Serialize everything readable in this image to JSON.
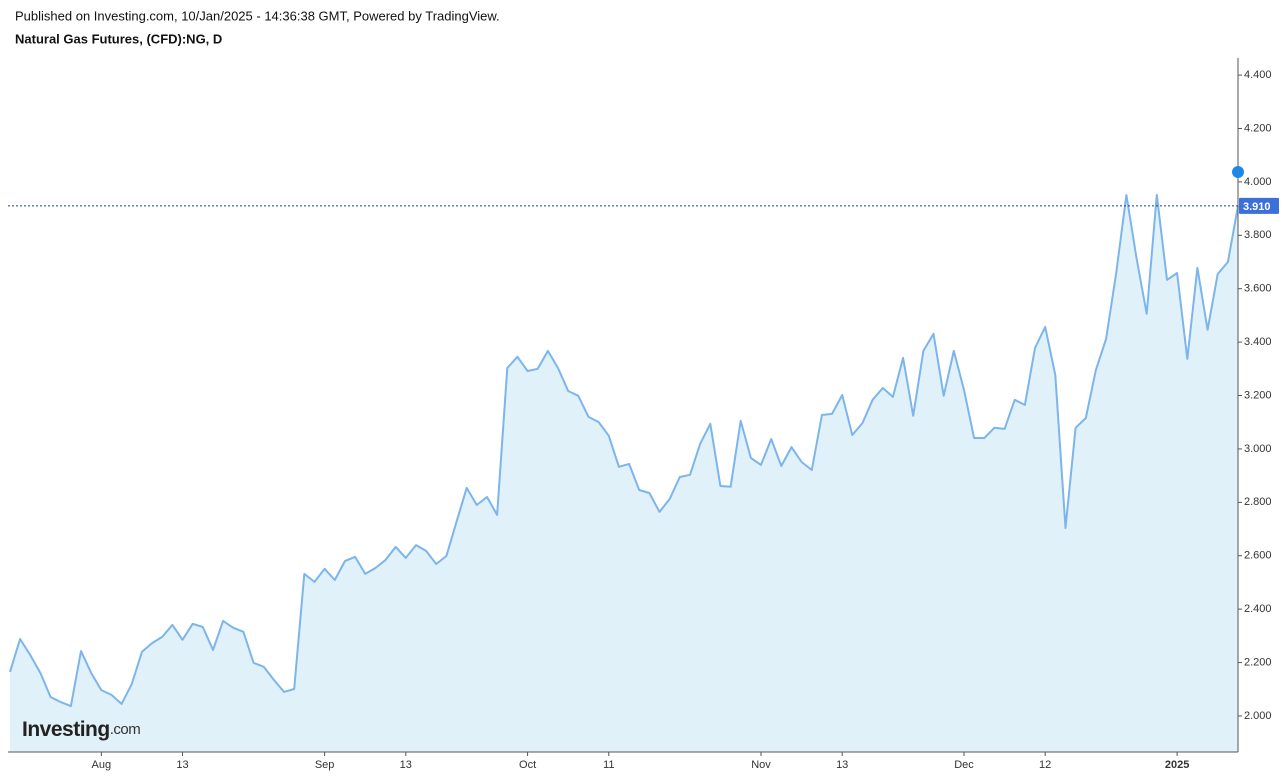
{
  "chart_data": {
    "type": "area",
    "published": "Published on Investing.com, 10/Jan/2025 - 14:36:38 GMT, Powered by TradingView.",
    "title": "Natural Gas Futures, (CFD):NG, D",
    "watermark": [
      "Investing",
      ".com"
    ],
    "categories": [
      null,
      null,
      null,
      null,
      null,
      null,
      null,
      null,
      null,
      "Aug",
      null,
      null,
      null,
      null,
      null,
      null,
      null,
      "13",
      null,
      null,
      null,
      null,
      null,
      null,
      null,
      null,
      null,
      null,
      null,
      null,
      null,
      "Sep",
      null,
      null,
      null,
      null,
      null,
      null,
      null,
      "13",
      null,
      null,
      null,
      null,
      null,
      null,
      null,
      null,
      null,
      null,
      null,
      "Oct",
      null,
      null,
      null,
      null,
      null,
      null,
      null,
      "11",
      null,
      null,
      null,
      null,
      null,
      null,
      null,
      null,
      null,
      null,
      null,
      null,
      null,
      null,
      "Nov",
      null,
      null,
      null,
      null,
      null,
      null,
      null,
      "13",
      null,
      null,
      null,
      null,
      null,
      null,
      null,
      null,
      null,
      null,
      null,
      "Dec",
      null,
      null,
      null,
      null,
      null,
      null,
      null,
      "12",
      null,
      null,
      null,
      null,
      null,
      null,
      null,
      null,
      null,
      null,
      null,
      null,
      "2025",
      null,
      null,
      null,
      null,
      null,
      null
    ],
    "values": [
      2.165,
      2.288,
      2.228,
      2.161,
      2.071,
      2.052,
      2.037,
      2.243,
      2.161,
      2.097,
      2.079,
      2.045,
      2.12,
      2.24,
      2.273,
      2.296,
      2.341,
      2.285,
      2.345,
      2.333,
      2.247,
      2.356,
      2.33,
      2.315,
      2.199,
      2.184,
      2.135,
      2.09,
      2.101,
      2.532,
      2.502,
      2.551,
      2.509,
      2.58,
      2.596,
      2.532,
      2.554,
      2.584,
      2.633,
      2.592,
      2.64,
      2.618,
      2.569,
      2.599,
      2.727,
      2.854,
      2.79,
      2.82,
      2.753,
      3.303,
      3.345,
      3.292,
      3.3,
      3.367,
      3.303,
      3.217,
      3.199,
      3.12,
      3.101,
      3.049,
      2.933,
      2.944,
      2.846,
      2.835,
      2.764,
      2.813,
      2.895,
      2.903,
      3.019,
      3.094,
      2.861,
      2.858,
      3.105,
      2.966,
      2.94,
      3.037,
      2.936,
      3.007,
      2.951,
      2.921,
      3.127,
      3.131,
      3.202,
      3.052,
      3.097,
      3.184,
      3.228,
      3.195,
      3.341,
      3.124,
      3.367,
      3.431,
      3.199,
      3.367,
      3.221,
      3.041,
      3.041,
      3.079,
      3.075,
      3.184,
      3.165,
      3.378,
      3.457,
      3.277,
      2.704,
      3.079,
      3.116,
      3.296,
      3.412,
      3.659,
      3.951,
      3.715,
      3.506,
      3.951,
      3.633,
      3.659,
      3.337,
      3.678,
      3.446,
      3.655,
      3.7,
      3.91
    ],
    "color": "#7cb5ec",
    "fill": "#e1f1fa",
    "ylim": [
      1.865,
      4.464
    ],
    "yticks": [
      {
        "value": 2.0,
        "label": "2.000"
      },
      {
        "value": 2.2,
        "label": "2.200"
      },
      {
        "value": 2.4,
        "label": "2.400"
      },
      {
        "value": 2.6,
        "label": "2.600"
      },
      {
        "value": 2.8,
        "label": "2.800"
      },
      {
        "value": 3.0,
        "label": "3.000"
      },
      {
        "value": 3.2,
        "label": "3.200"
      },
      {
        "value": 3.4,
        "label": "3.400"
      },
      {
        "value": 3.6,
        "label": "3.600"
      },
      {
        "value": 3.8,
        "label": "3.800"
      },
      {
        "value": 4.0,
        "label": "4.000"
      },
      {
        "value": 4.2,
        "label": "4.200"
      },
      {
        "value": 4.4,
        "label": "4.400"
      }
    ],
    "last_price": {
      "value": 3.91,
      "label": "3.910"
    },
    "grid": false
  }
}
